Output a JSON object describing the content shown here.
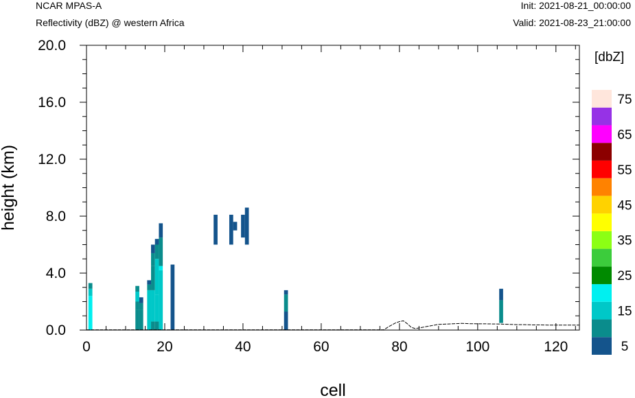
{
  "header": {
    "model": "NCAR MPAS-A",
    "field": "Reflectivity (dBZ) @ western Africa",
    "init": "Init: 2021-08-21_00:00:00",
    "valid": "Valid: 2021-08-23_21:00:00"
  },
  "chart_data": {
    "type": "heatmap",
    "xlabel": "cell",
    "ylabel": "height (km)",
    "xlim": [
      0,
      126
    ],
    "ylim": [
      0,
      20
    ],
    "x_ticks": [
      {
        "value": 0,
        "label": "0"
      },
      {
        "value": 20,
        "label": "20"
      },
      {
        "value": 40,
        "label": "40"
      },
      {
        "value": 60,
        "label": "60"
      },
      {
        "value": 80,
        "label": "80"
      },
      {
        "value": 100,
        "label": "100"
      },
      {
        "value": 120,
        "label": "120"
      }
    ],
    "y_ticks": [
      {
        "value": 0,
        "label": "0.0"
      },
      {
        "value": 4,
        "label": "4.0"
      },
      {
        "value": 8,
        "label": "8.0"
      },
      {
        "value": 12,
        "label": "12.0"
      },
      {
        "value": 16,
        "label": "16.0"
      },
      {
        "value": 20,
        "label": "20.0"
      }
    ],
    "colorbar": {
      "title": "[dbZ]",
      "colors": [
        "#14548c",
        "#0a8c8c",
        "#00c8c8",
        "#00f0f0",
        "#008a00",
        "#3ccc3c",
        "#8cff14",
        "#ffff00",
        "#ffd200",
        "#ff8200",
        "#ff0000",
        "#8c0000",
        "#ff00ff",
        "#9632e6",
        "#ffe6dc"
      ],
      "labels": [
        {
          "value": 5,
          "label": "5"
        },
        {
          "value": 15,
          "label": "15"
        },
        {
          "value": 25,
          "label": "25"
        },
        {
          "value": 35,
          "label": "35"
        },
        {
          "value": 45,
          "label": "45"
        },
        {
          "value": 55,
          "label": "55"
        },
        {
          "value": 65,
          "label": "65"
        },
        {
          "value": 75,
          "label": "75"
        }
      ]
    },
    "cells": [
      {
        "x": 1,
        "y0": 0,
        "y1": 2.4,
        "dbz": 24
      },
      {
        "x": 1,
        "y0": 2.4,
        "y1": 2.9,
        "dbz": 18
      },
      {
        "x": 1,
        "y0": 2.9,
        "y1": 3.3,
        "dbz": 14
      },
      {
        "x": 13,
        "y0": 0,
        "y1": 1.4,
        "dbz": 10
      },
      {
        "x": 13,
        "y0": 1.4,
        "y1": 2.0,
        "dbz": 14
      },
      {
        "x": 13,
        "y0": 2.0,
        "y1": 2.7,
        "dbz": 18
      },
      {
        "x": 13,
        "y0": 2.7,
        "y1": 3.1,
        "dbz": 11
      },
      {
        "x": 14,
        "y0": 0,
        "y1": 1.4,
        "dbz": 10
      },
      {
        "x": 14,
        "y0": 1.4,
        "y1": 1.9,
        "dbz": 13
      },
      {
        "x": 14,
        "y0": 1.9,
        "y1": 2.3,
        "dbz": 6
      },
      {
        "x": 16,
        "y0": 0,
        "y1": 2.8,
        "dbz": 16
      },
      {
        "x": 16,
        "y0": 2.8,
        "y1": 3.2,
        "dbz": 11
      },
      {
        "x": 16,
        "y0": 3.2,
        "y1": 3.5,
        "dbz": 6
      },
      {
        "x": 17,
        "y0": 0,
        "y1": 0.6,
        "dbz": 14
      },
      {
        "x": 17,
        "y0": 0.6,
        "y1": 2.8,
        "dbz": 16
      },
      {
        "x": 17,
        "y0": 2.8,
        "y1": 4.5,
        "dbz": 12
      },
      {
        "x": 17,
        "y0": 4.5,
        "y1": 5.4,
        "dbz": 11
      },
      {
        "x": 17,
        "y0": 5.4,
        "y1": 6.0,
        "dbz": 6
      },
      {
        "x": 18,
        "y0": 0,
        "y1": 0.6,
        "dbz": 14
      },
      {
        "x": 18,
        "y0": 0.6,
        "y1": 2.5,
        "dbz": 18
      },
      {
        "x": 18,
        "y0": 2.5,
        "y1": 5.0,
        "dbz": 16
      },
      {
        "x": 18,
        "y0": 5.0,
        "y1": 6.0,
        "dbz": 11
      },
      {
        "x": 18,
        "y0": 6.0,
        "y1": 6.4,
        "dbz": 6
      },
      {
        "x": 19,
        "y0": 0,
        "y1": 4.2,
        "dbz": 16
      },
      {
        "x": 19,
        "y0": 4.2,
        "y1": 4.5,
        "dbz": 24
      },
      {
        "x": 19,
        "y0": 4.5,
        "y1": 6.5,
        "dbz": 14
      },
      {
        "x": 19,
        "y0": 6.5,
        "y1": 7.5,
        "dbz": 6
      },
      {
        "x": 22,
        "y0": 0,
        "y1": 4.6,
        "dbz": 6
      },
      {
        "x": 33,
        "y0": 6.0,
        "y1": 8.1,
        "dbz": 6
      },
      {
        "x": 37,
        "y0": 6.0,
        "y1": 8.1,
        "dbz": 6
      },
      {
        "x": 38,
        "y0": 7.0,
        "y1": 7.6,
        "dbz": 6
      },
      {
        "x": 40,
        "y0": 6.5,
        "y1": 8.1,
        "dbz": 6
      },
      {
        "x": 41,
        "y0": 6.0,
        "y1": 8.6,
        "dbz": 6
      },
      {
        "x": 51,
        "y0": 0,
        "y1": 1.3,
        "dbz": 6
      },
      {
        "x": 51,
        "y0": 1.3,
        "y1": 2.5,
        "dbz": 10
      },
      {
        "x": 51,
        "y0": 2.5,
        "y1": 2.8,
        "dbz": 6
      },
      {
        "x": 106,
        "y0": 0.5,
        "y1": 2.1,
        "dbz": 10
      },
      {
        "x": 106,
        "y0": 2.1,
        "y1": 2.9,
        "dbz": 6
      }
    ],
    "terrain": {
      "x": [
        0,
        76,
        77,
        78,
        79,
        80,
        81,
        82,
        83,
        84,
        85,
        86,
        87,
        88,
        89,
        90,
        92,
        94,
        96,
        98,
        100,
        102,
        104,
        106,
        108,
        110,
        112,
        114,
        116,
        118,
        120,
        122,
        124,
        126
      ],
      "y": [
        0.02,
        0.02,
        0.2,
        0.35,
        0.5,
        0.6,
        0.65,
        0.45,
        0.2,
        0.1,
        0.15,
        0.2,
        0.25,
        0.3,
        0.35,
        0.4,
        0.42,
        0.45,
        0.47,
        0.45,
        0.44,
        0.44,
        0.43,
        0.42,
        0.4,
        0.38,
        0.38,
        0.36,
        0.36,
        0.35,
        0.35,
        0.35,
        0.35,
        0.35
      ]
    }
  }
}
